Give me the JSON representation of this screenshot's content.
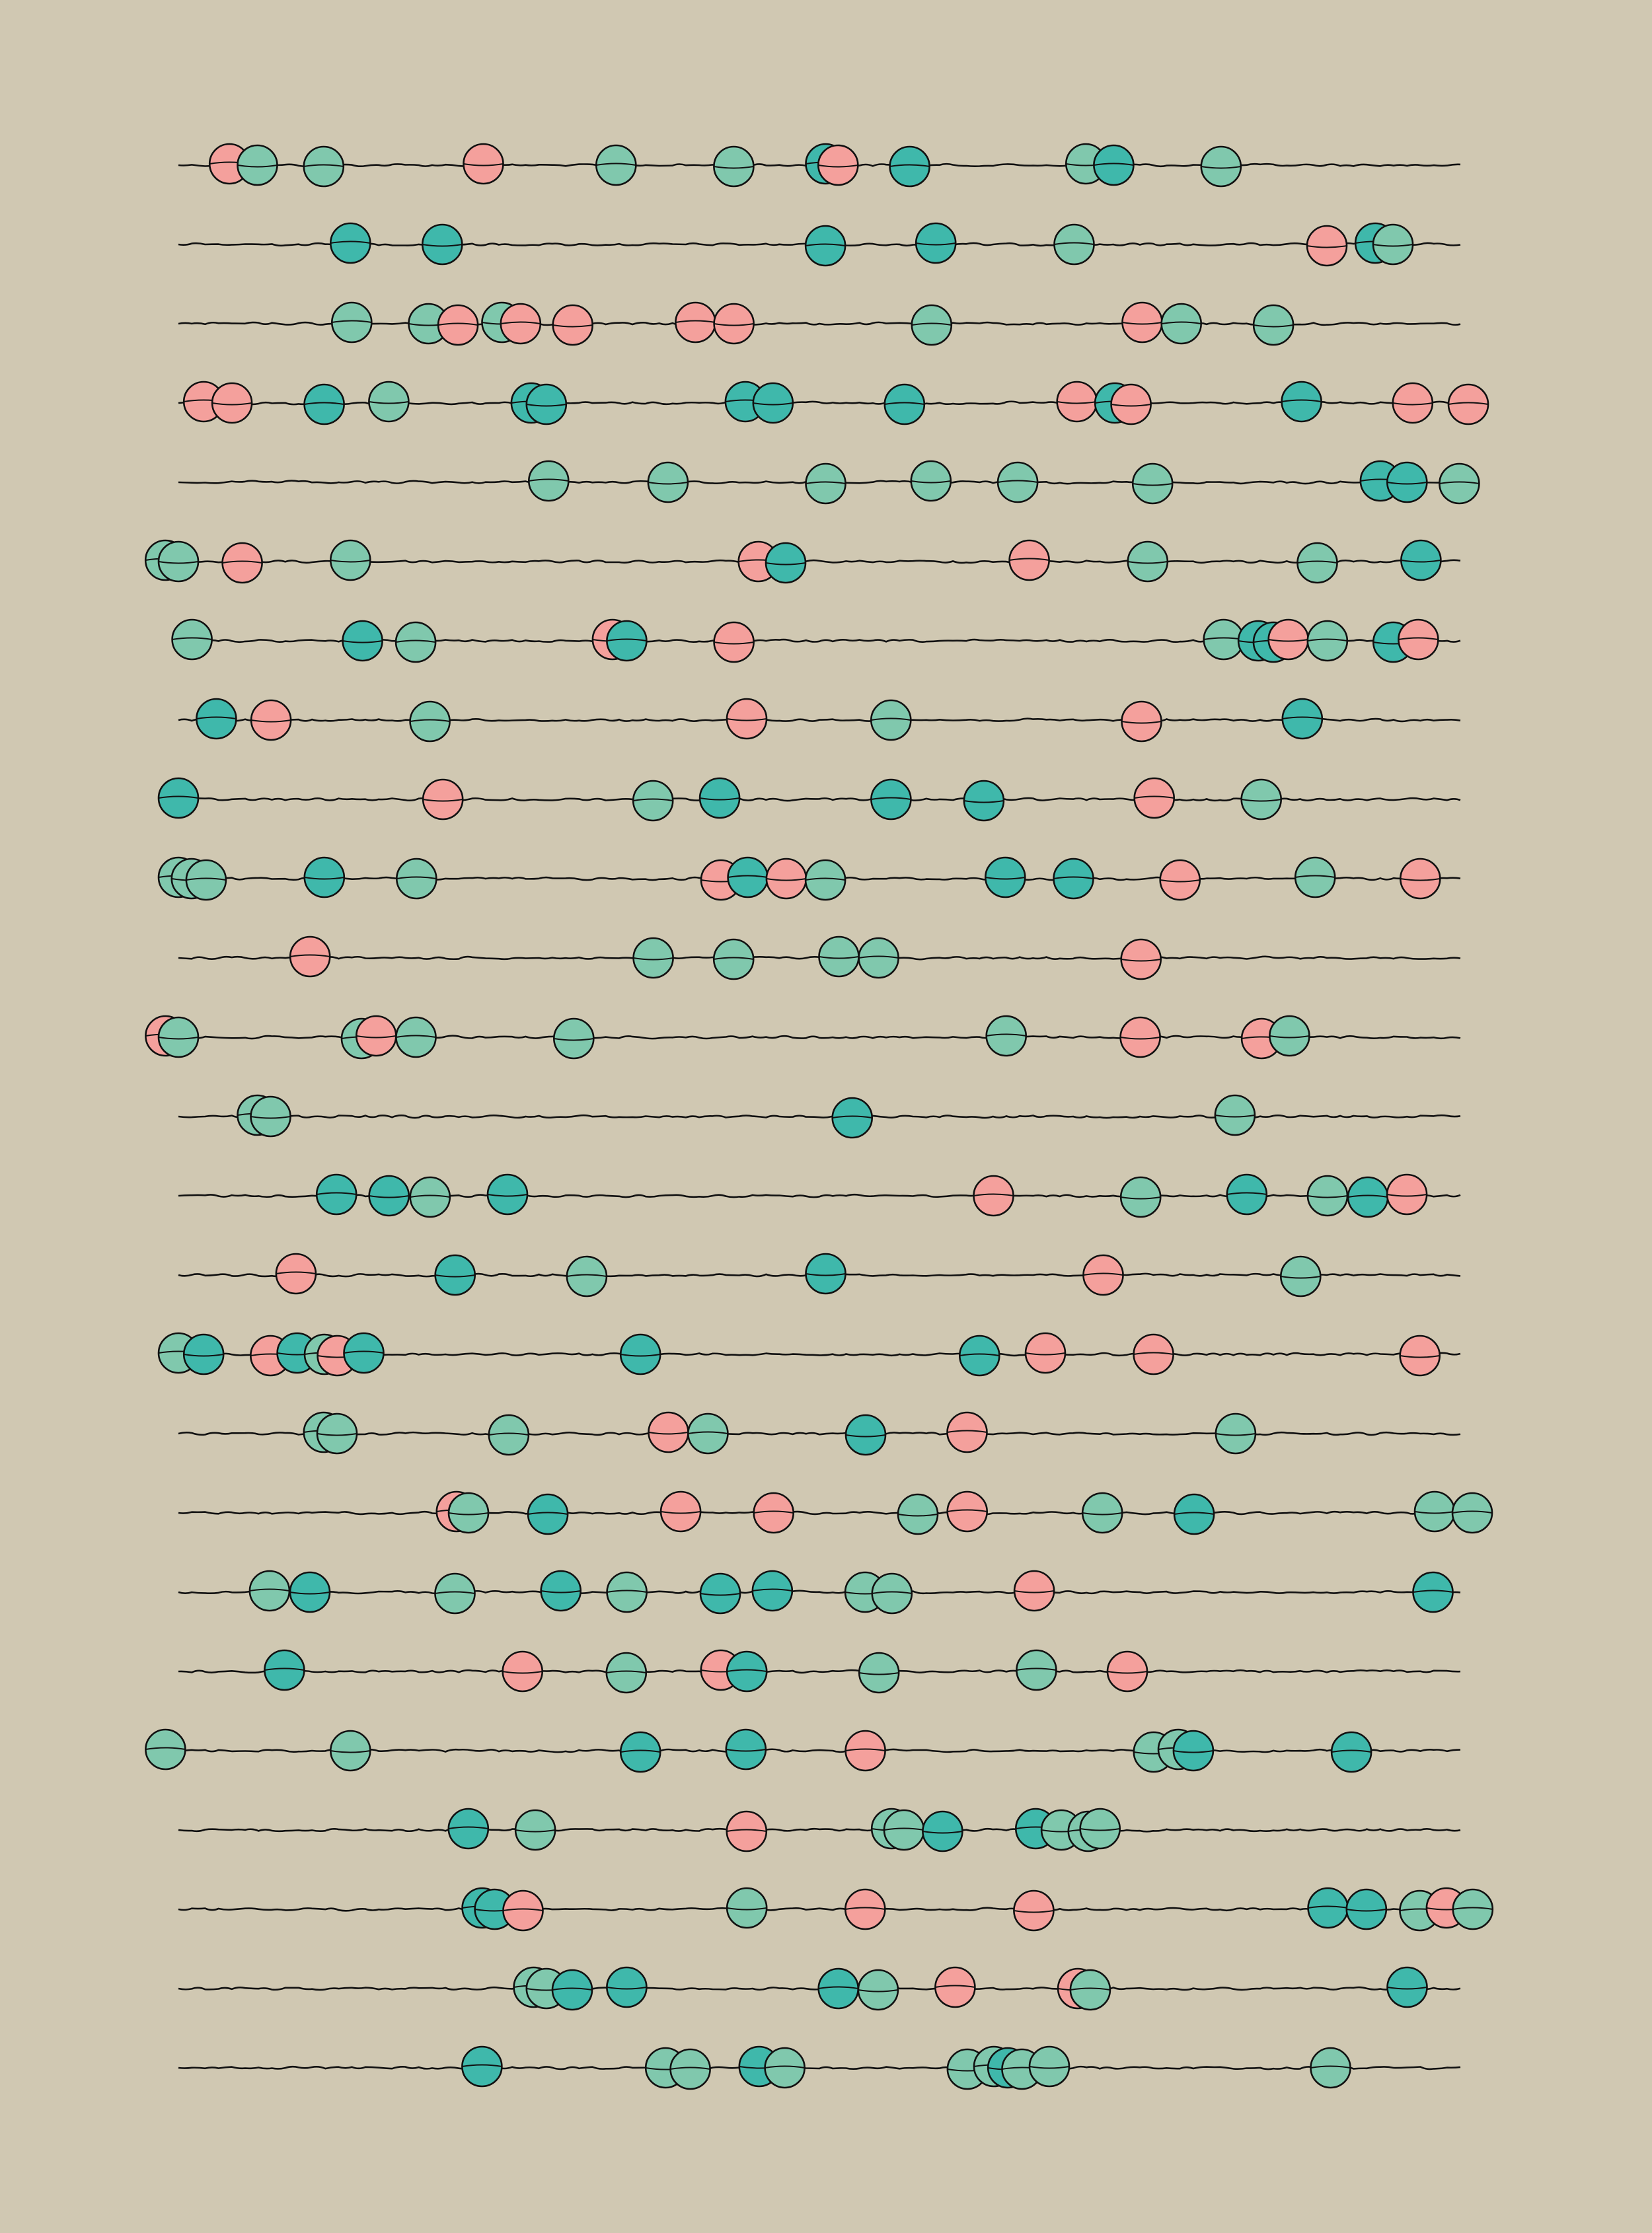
{
  "colors": {
    "background": "#d0c8b2",
    "line": "#111111",
    "pink": "#f4a09c",
    "mint": "#80c8ad",
    "teal": "#3fb8ab"
  },
  "rows": [
    {
      "dots": [
        [
          0.0398,
          "pink"
        ],
        [
          0.0616,
          "mint"
        ],
        [
          0.1133,
          "mint"
        ],
        [
          0.2379,
          "pink"
        ],
        [
          0.3414,
          "mint"
        ],
        [
          0.4332,
          "mint"
        ],
        [
          0.5049,
          "teal"
        ],
        [
          0.5146,
          "pink"
        ],
        [
          0.5704,
          "teal"
        ],
        [
          0.7079,
          "mint"
        ],
        [
          0.7296,
          "teal"
        ],
        [
          0.8133,
          "mint"
        ]
      ]
    },
    {
      "dots": [
        [
          0.1342,
          "teal"
        ],
        [
          0.2058,
          "teal"
        ],
        [
          0.5047,
          "teal"
        ],
        [
          0.5908,
          "teal"
        ],
        [
          0.6987,
          "mint"
        ],
        [
          0.8959,
          "pink"
        ],
        [
          0.9336,
          "teal"
        ],
        [
          0.9474,
          "mint"
        ]
      ]
    },
    {
      "dots": [
        [
          0.1352,
          "mint"
        ],
        [
          0.1951,
          "mint"
        ],
        [
          0.2181,
          "pink"
        ],
        [
          0.2523,
          "mint"
        ],
        [
          0.2669,
          "pink"
        ],
        [
          0.3076,
          "pink"
        ],
        [
          0.4033,
          "pink"
        ],
        [
          0.4333,
          "pink"
        ],
        [
          0.5875,
          "mint"
        ],
        [
          0.7518,
          "pink"
        ],
        [
          0.7823,
          "mint"
        ],
        [
          0.8542,
          "mint"
        ]
      ]
    },
    {
      "dots": [
        [
          0.0197,
          "pink"
        ],
        [
          0.0418,
          "pink"
        ],
        [
          0.1137,
          "teal"
        ],
        [
          0.1641,
          "mint"
        ],
        [
          0.2752,
          "teal"
        ],
        [
          0.287,
          "teal"
        ],
        [
          0.4422,
          "teal"
        ],
        [
          0.4638,
          "teal"
        ],
        [
          0.5664,
          "teal"
        ],
        [
          0.7009,
          "pink"
        ],
        [
          0.7305,
          "teal"
        ],
        [
          0.7431,
          "pink"
        ],
        [
          0.8761,
          "teal"
        ],
        [
          0.9628,
          "pink"
        ],
        [
          1.0062,
          "pink"
        ]
      ]
    },
    {
      "dots": [
        [
          0.2888,
          "mint"
        ],
        [
          0.3819,
          "mint"
        ],
        [
          0.5049,
          "mint"
        ],
        [
          0.587,
          "mint"
        ],
        [
          0.6547,
          "mint"
        ],
        [
          0.7599,
          "mint"
        ],
        [
          0.9376,
          "teal"
        ],
        [
          0.9584,
          "teal"
        ],
        [
          0.9992,
          "mint"
        ]
      ]
    },
    {
      "dots": [
        [
          -0.0102,
          "mint"
        ],
        [
          0.0,
          "mint"
        ],
        [
          0.0498,
          "pink"
        ],
        [
          0.1342,
          "mint"
        ],
        [
          0.4524,
          "pink"
        ],
        [
          0.4737,
          "teal"
        ],
        [
          0.6637,
          "pink"
        ],
        [
          0.7561,
          "mint"
        ],
        [
          0.8884,
          "mint"
        ],
        [
          0.9693,
          "teal"
        ]
      ]
    },
    {
      "dots": [
        [
          0.0106,
          "mint"
        ],
        [
          0.1436,
          "teal"
        ],
        [
          0.1851,
          "mint"
        ],
        [
          0.3386,
          "pink"
        ],
        [
          0.3497,
          "teal"
        ],
        [
          0.4333,
          "pink"
        ],
        [
          0.8153,
          "mint"
        ],
        [
          0.8423,
          "teal"
        ],
        [
          0.8541,
          "teal"
        ],
        [
          0.8658,
          "pink"
        ],
        [
          0.8963,
          "mint"
        ],
        [
          0.9476,
          "teal"
        ],
        [
          0.9672,
          "pink"
        ]
      ]
    },
    {
      "dots": [
        [
          0.0296,
          "teal"
        ],
        [
          0.0722,
          "pink"
        ],
        [
          0.1962,
          "mint"
        ],
        [
          0.4433,
          "pink"
        ],
        [
          0.5558,
          "mint"
        ],
        [
          0.7513,
          "pink"
        ],
        [
          0.8767,
          "teal"
        ]
      ]
    },
    {
      "dots": [
        [
          0.0,
          "teal"
        ],
        [
          0.2063,
          "pink"
        ],
        [
          0.3702,
          "mint"
        ],
        [
          0.4222,
          "teal"
        ],
        [
          0.5559,
          "teal"
        ],
        [
          0.6283,
          "teal"
        ],
        [
          0.7612,
          "pink"
        ],
        [
          0.8447,
          "mint"
        ]
      ]
    },
    {
      "dots": [
        [
          0.0,
          "mint"
        ],
        [
          0.0102,
          "mint"
        ],
        [
          0.0216,
          "mint"
        ],
        [
          0.1138,
          "teal"
        ],
        [
          0.1857,
          "mint"
        ],
        [
          0.4232,
          "pink"
        ],
        [
          0.4441,
          "teal"
        ],
        [
          0.4742,
          "pink"
        ],
        [
          0.5047,
          "mint"
        ],
        [
          0.645,
          "teal"
        ],
        [
          0.6982,
          "teal"
        ],
        [
          0.7813,
          "pink"
        ],
        [
          0.8867,
          "mint"
        ],
        [
          0.9687,
          "pink"
        ]
      ]
    },
    {
      "dots": [
        [
          0.1027,
          "pink"
        ],
        [
          0.3704,
          "mint"
        ],
        [
          0.4331,
          "mint"
        ],
        [
          0.5152,
          "mint"
        ],
        [
          0.5462,
          "mint"
        ],
        [
          0.7509,
          "pink"
        ]
      ]
    },
    {
      "dots": [
        [
          -0.0101,
          "pink"
        ],
        [
          0.0,
          "mint"
        ],
        [
          0.1428,
          "mint"
        ],
        [
          0.1543,
          "pink"
        ],
        [
          0.1853,
          "mint"
        ],
        [
          0.3084,
          "mint"
        ],
        [
          0.6457,
          "mint"
        ],
        [
          0.7503,
          "pink"
        ],
        [
          0.8449,
          "pink"
        ],
        [
          0.8667,
          "mint"
        ]
      ]
    },
    {
      "dots": [
        [
          0.0616,
          "mint"
        ],
        [
          0.0719,
          "mint"
        ],
        [
          0.5256,
          "teal"
        ],
        [
          0.8242,
          "mint"
        ]
      ]
    },
    {
      "dots": [
        [
          0.1233,
          "teal"
        ],
        [
          0.1643,
          "teal"
        ],
        [
          0.1963,
          "mint"
        ],
        [
          0.2567,
          "teal"
        ],
        [
          0.6358,
          "pink"
        ],
        [
          0.7506,
          "mint"
        ],
        [
          0.8334,
          "teal"
        ],
        [
          0.8964,
          "mint"
        ],
        [
          0.9279,
          "teal"
        ],
        [
          0.9583,
          "pink"
        ]
      ]
    },
    {
      "dots": [
        [
          0.0917,
          "pink"
        ],
        [
          0.2158,
          "teal"
        ],
        [
          0.3185,
          "mint"
        ],
        [
          0.5049,
          "teal"
        ],
        [
          0.7214,
          "pink"
        ],
        [
          0.8754,
          "mint"
        ]
      ]
    },
    {
      "dots": [
        [
          0.0,
          "mint"
        ],
        [
          0.0197,
          "teal"
        ],
        [
          0.0718,
          "pink"
        ],
        [
          0.0926,
          "teal"
        ],
        [
          0.1139,
          "mint"
        ],
        [
          0.124,
          "pink"
        ],
        [
          0.1446,
          "teal"
        ],
        [
          0.3604,
          "teal"
        ],
        [
          0.6249,
          "teal"
        ],
        [
          0.6763,
          "pink"
        ],
        [
          0.7606,
          "pink"
        ],
        [
          0.9684,
          "pink"
        ]
      ]
    },
    {
      "dots": [
        [
          0.1133,
          "mint"
        ],
        [
          0.1237,
          "mint"
        ],
        [
          0.2577,
          "mint"
        ],
        [
          0.3822,
          "pink"
        ],
        [
          0.4131,
          "mint"
        ],
        [
          0.5361,
          "teal"
        ],
        [
          0.6152,
          "pink"
        ],
        [
          0.8247,
          "mint"
        ]
      ]
    },
    {
      "dots": [
        [
          0.2169,
          "pink"
        ],
        [
          0.2263,
          "mint"
        ],
        [
          0.2882,
          "teal"
        ],
        [
          0.3918,
          "pink"
        ],
        [
          0.4643,
          "pink"
        ],
        [
          0.5768,
          "mint"
        ],
        [
          0.6153,
          "pink"
        ],
        [
          0.7207,
          "mint"
        ],
        [
          0.7923,
          "teal"
        ],
        [
          0.9799,
          "mint"
        ],
        [
          1.0093,
          "mint"
        ]
      ]
    },
    {
      "dots": [
        [
          0.0711,
          "mint"
        ],
        [
          0.1026,
          "teal"
        ],
        [
          0.2157,
          "mint"
        ],
        [
          0.2983,
          "teal"
        ],
        [
          0.3498,
          "mint"
        ],
        [
          0.4227,
          "teal"
        ],
        [
          0.4633,
          "teal"
        ],
        [
          0.5356,
          "mint"
        ],
        [
          0.5566,
          "mint"
        ],
        [
          0.6676,
          "pink"
        ],
        [
          0.9786,
          "teal"
        ]
      ]
    },
    {
      "dots": [
        [
          0.0827,
          "teal"
        ],
        [
          0.2684,
          "pink"
        ],
        [
          0.3494,
          "mint"
        ],
        [
          0.4231,
          "pink"
        ],
        [
          0.4434,
          "teal"
        ],
        [
          0.5465,
          "mint"
        ],
        [
          0.6693,
          "mint"
        ],
        [
          0.7402,
          "pink"
        ]
      ]
    },
    {
      "dots": [
        [
          -0.0101,
          "mint"
        ],
        [
          0.1342,
          "mint"
        ],
        [
          0.3604,
          "teal"
        ],
        [
          0.4427,
          "teal"
        ],
        [
          0.5359,
          "pink"
        ],
        [
          0.7607,
          "mint"
        ],
        [
          0.7799,
          "mint"
        ],
        [
          0.7917,
          "teal"
        ],
        [
          0.915,
          "teal"
        ]
      ]
    },
    {
      "dots": [
        [
          0.2262,
          "teal"
        ],
        [
          0.2784,
          "mint"
        ],
        [
          0.4432,
          "pink"
        ],
        [
          0.5563,
          "mint"
        ],
        [
          0.566,
          "mint"
        ],
        [
          0.5961,
          "teal"
        ],
        [
          0.6687,
          "teal"
        ],
        [
          0.6887,
          "mint"
        ],
        [
          0.7097,
          "mint"
        ],
        [
          0.7189,
          "mint"
        ]
      ]
    },
    {
      "dots": [
        [
          0.2369,
          "teal"
        ],
        [
          0.2467,
          "teal"
        ],
        [
          0.2688,
          "pink"
        ],
        [
          0.4434,
          "mint"
        ],
        [
          0.5357,
          "pink"
        ],
        [
          0.6672,
          "pink"
        ],
        [
          0.8967,
          "teal"
        ],
        [
          0.9267,
          "teal"
        ],
        [
          0.9683,
          "mint"
        ],
        [
          0.9891,
          "pink"
        ],
        [
          1.0097,
          "mint"
        ]
      ]
    },
    {
      "dots": [
        [
          0.2771,
          "mint"
        ],
        [
          0.287,
          "mint"
        ],
        [
          0.3072,
          "teal"
        ],
        [
          0.3497,
          "teal"
        ],
        [
          0.5148,
          "teal"
        ],
        [
          0.5458,
          "mint"
        ],
        [
          0.6059,
          "pink"
        ],
        [
          0.7016,
          "pink"
        ],
        [
          0.7113,
          "mint"
        ],
        [
          0.9585,
          "teal"
        ]
      ]
    },
    {
      "dots": [
        [
          0.2368,
          "teal"
        ],
        [
          0.38,
          "mint"
        ],
        [
          0.3993,
          "mint"
        ],
        [
          0.453,
          "teal"
        ],
        [
          0.473,
          "mint"
        ],
        [
          0.6154,
          "mint"
        ],
        [
          0.6361,
          "mint"
        ],
        [
          0.647,
          "teal"
        ],
        [
          0.658,
          "mint"
        ],
        [
          0.6794,
          "mint"
        ],
        [
          0.8987,
          "mint"
        ]
      ]
    }
  ]
}
